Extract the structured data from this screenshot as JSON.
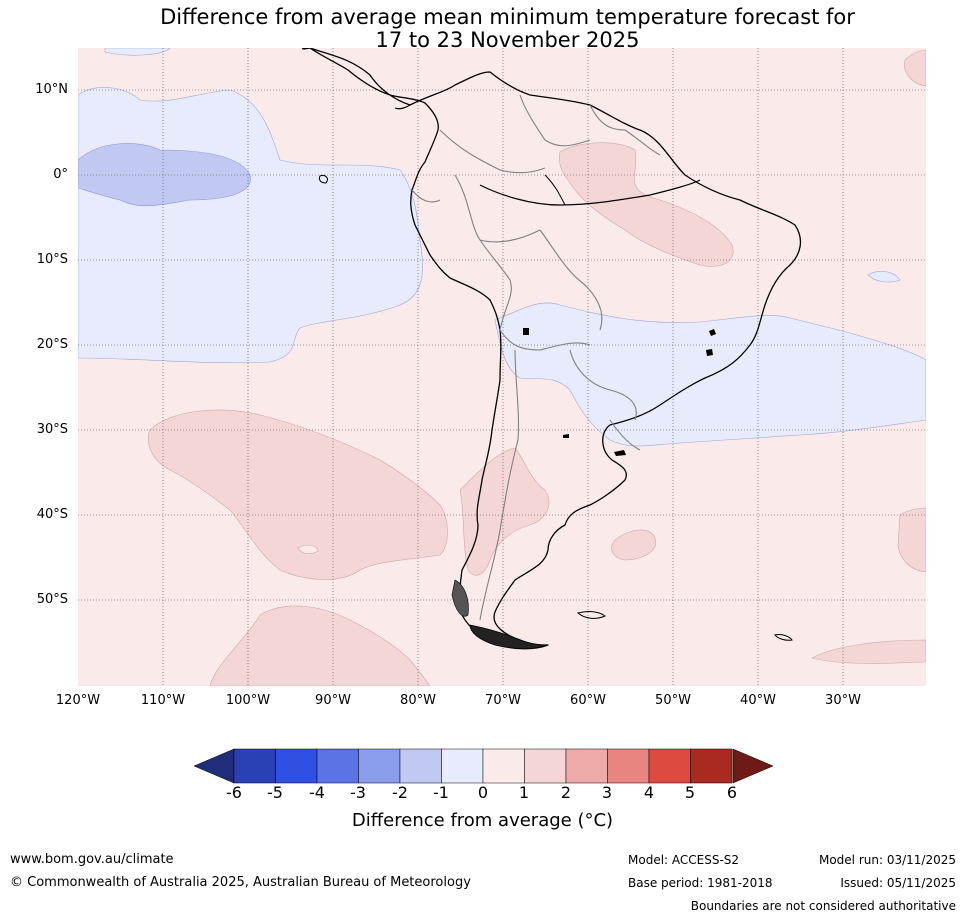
{
  "title": {
    "line1": "Difference from average mean minimum temperature forecast for",
    "line2": "17 to 23 November 2025"
  },
  "map": {
    "lat_labels": [
      "10°N",
      "0°",
      "10°S",
      "20°S",
      "30°S",
      "40°S",
      "50°S"
    ],
    "lon_labels": [
      "120°W",
      "110°W",
      "100°W",
      "90°W",
      "80°W",
      "70°W",
      "60°W",
      "50°W",
      "40°W",
      "30°W"
    ],
    "colors": {
      "ocean_default": "#fbeaea",
      "neg1_to_0": "#e8ebfb",
      "neg2_to_neg1": "#c1c8f2",
      "pos1_to_2": "#f5d6d6",
      "coast": "#000000",
      "border": "#808080"
    }
  },
  "colorbar": {
    "ticks": [
      "-6",
      "-5",
      "-4",
      "-3",
      "-2",
      "-1",
      "0",
      "1",
      "2",
      "3",
      "4",
      "5",
      "6"
    ],
    "colors": [
      "#1f2d7a",
      "#2a41b5",
      "#2f50e2",
      "#5b73e4",
      "#8a9cec",
      "#c1c8f2",
      "#e8ebfb",
      "#fbeaea",
      "#f5d6d6",
      "#eeaaa8",
      "#e98580",
      "#dd4b40",
      "#a82a21",
      "#6e1a16"
    ],
    "title": "Difference from average (°C)"
  },
  "footer": {
    "website": "www.bom.gov.au/climate",
    "copyright": "© Commonwealth of Australia 2025, Australian Bureau of Meteorology",
    "model": "Model: ACCESS-S2",
    "base_period": "Base period: 1981-2018",
    "model_run": "Model run: 03/11/2025",
    "issued": "Issued: 05/11/2025",
    "disclaimer": "Boundaries are not considered authoritative"
  }
}
